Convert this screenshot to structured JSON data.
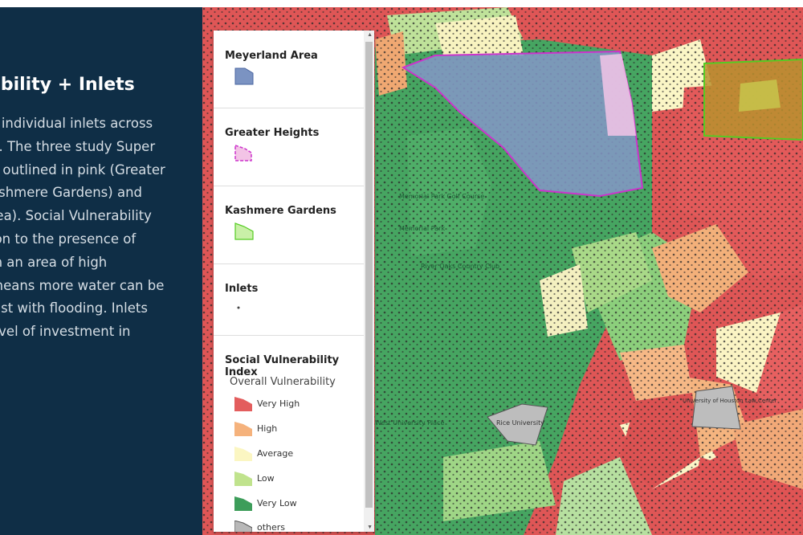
{
  "story": {
    "title": "ability + Inlets",
    "body_lines": [
      "s individual inlets across",
      "n. The three study Super",
      "e outlined in pink (Greater",
      "ashmere Gardens) and",
      "rea). Social Vulnerability",
      "ion to the presence of",
      "in an area of high",
      "means more water can be",
      "sist with flooding. Inlets",
      "evel of investment in"
    ]
  },
  "map": {
    "labels": [
      "Memorial Park Golf Course",
      "Memorial Park",
      "River Oaks Country Club",
      "West University Place",
      "Rice University",
      "University of Houston Law Center"
    ]
  },
  "legend": {
    "collapse_icon": "chevron-down-icon",
    "layers": [
      {
        "title": "Meyerland Area",
        "fill": "#7b93c2",
        "stroke": "#4a66a0"
      },
      {
        "title": "Greater Heights",
        "fill": "#f3c4e6",
        "stroke": "#cc33cc"
      },
      {
        "title": "Kashmere Gardens",
        "fill": "#c9f0a8",
        "stroke": "#55cc22"
      },
      {
        "title": "Inlets",
        "symbol": "point"
      }
    ],
    "svi": {
      "title": "Social Vulnerability Index",
      "subtitle": "Overall Vulnerability",
      "classes": [
        {
          "label": "Very High",
          "color": "#e35d5d"
        },
        {
          "label": "High",
          "color": "#f5b27c"
        },
        {
          "label": "Average",
          "color": "#fbf6c2"
        },
        {
          "label": "Low",
          "color": "#c0e38d"
        },
        {
          "label": "Very Low",
          "color": "#3d9d5a"
        },
        {
          "label": "others",
          "color": "#b8b8b8"
        }
      ]
    }
  }
}
